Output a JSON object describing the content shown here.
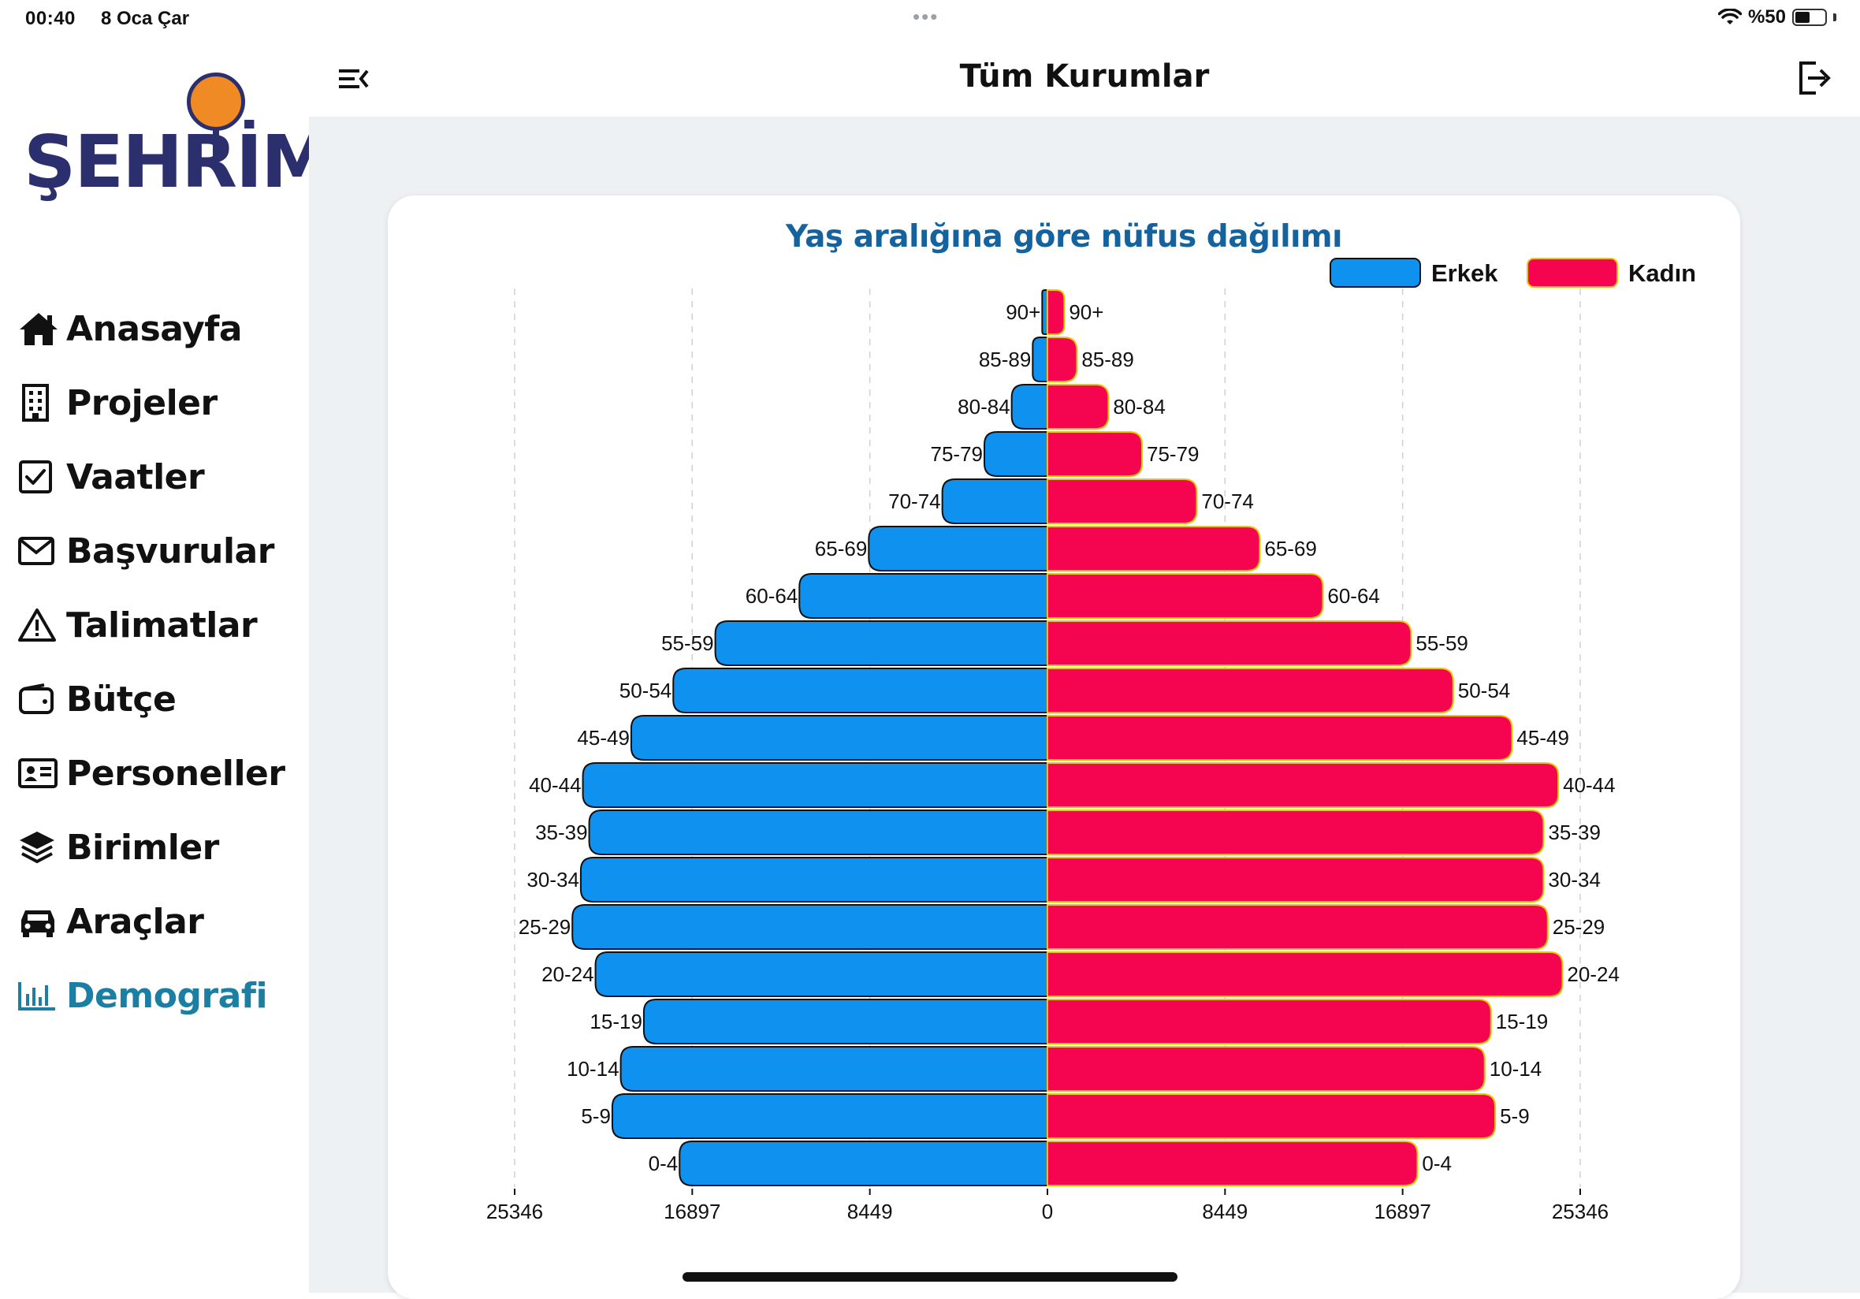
{
  "status_bar": {
    "time": "00:40",
    "date": "8 Oca Çar",
    "battery": "%50",
    "battery_level": 0.5
  },
  "logo": {
    "text": "ŞEHRİM"
  },
  "header": {
    "title": "Tüm Kurumlar"
  },
  "sidebar": {
    "items": [
      {
        "label": "Anasayfa",
        "icon": "home-icon"
      },
      {
        "label": "Projeler",
        "icon": "building-icon"
      },
      {
        "label": "Vaatler",
        "icon": "checkbox-icon"
      },
      {
        "label": "Başvurular",
        "icon": "envelope-icon"
      },
      {
        "label": "Talimatlar",
        "icon": "warning-icon"
      },
      {
        "label": "Bütçe",
        "icon": "wallet-icon"
      },
      {
        "label": "Personeller",
        "icon": "id-card-icon"
      },
      {
        "label": "Birimler",
        "icon": "layers-icon"
      },
      {
        "label": "Araçlar",
        "icon": "car-icon"
      },
      {
        "label": "Demografi",
        "icon": "bar-chart-icon",
        "active": true
      }
    ]
  },
  "colors": {
    "male": "#0f91f0",
    "female": "#f5054f",
    "title": "#15639e",
    "active_nav": "#1b7fa3"
  },
  "chart_data": {
    "type": "bar",
    "orientation": "horizontal-population-pyramid",
    "title": "Yaş aralığına göre nüfus dağılımı",
    "categories": [
      "90+",
      "85-89",
      "80-84",
      "75-79",
      "70-74",
      "65-69",
      "60-64",
      "55-59",
      "50-54",
      "45-49",
      "40-44",
      "35-39",
      "30-34",
      "25-29",
      "20-24",
      "15-19",
      "10-14",
      "5-9",
      "0-4"
    ],
    "series": [
      {
        "name": "Erkek",
        "values": [
          250,
          700,
          1700,
          3000,
          5000,
          8500,
          11800,
          15800,
          17800,
          19800,
          22100,
          21800,
          22200,
          22600,
          21500,
          19200,
          20300,
          20700,
          17500
        ]
      },
      {
        "name": "Kadın",
        "values": [
          800,
          1400,
          2900,
          4500,
          7100,
          10100,
          13100,
          17300,
          19300,
          22100,
          24300,
          23600,
          23600,
          23800,
          24500,
          21100,
          20800,
          21300,
          17600
        ]
      }
    ],
    "xticks": [
      "25346",
      "16897",
      "8449",
      "0",
      "8449",
      "16897",
      "25346"
    ],
    "xlim": [
      -25346,
      25346
    ],
    "legend": "top-right",
    "grid": true
  }
}
